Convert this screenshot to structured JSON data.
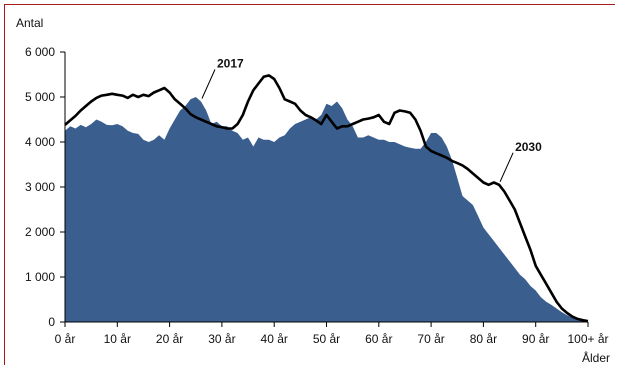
{
  "chart_data": {
    "type": "area",
    "title": "",
    "ylabel": "Antal",
    "xlabel": "Ålder",
    "xlim": [
      0,
      100
    ],
    "ylim": [
      0,
      6000
    ],
    "grid": false,
    "legend": "none",
    "x_ticks": [
      0,
      10,
      20,
      30,
      40,
      50,
      60,
      70,
      80,
      90,
      100
    ],
    "x_tick_labels": [
      "0 år",
      "10 år",
      "20 år",
      "30 år",
      "40 år",
      "50 år",
      "60 år",
      "70 år",
      "80 år",
      "90 år",
      "100+ år"
    ],
    "y_ticks": [
      0,
      1000,
      2000,
      3000,
      4000,
      5000,
      6000
    ],
    "y_tick_labels": [
      "0",
      "1 000",
      "2 000",
      "3 000",
      "4 000",
      "5 000",
      "6 000"
    ],
    "series": [
      {
        "name": "2017",
        "style": "area",
        "color": "#3a5f8f",
        "x": [
          0,
          1,
          2,
          3,
          4,
          5,
          6,
          7,
          8,
          9,
          10,
          11,
          12,
          13,
          14,
          15,
          16,
          17,
          18,
          19,
          20,
          21,
          22,
          23,
          24,
          25,
          26,
          27,
          28,
          29,
          30,
          31,
          32,
          33,
          34,
          35,
          36,
          37,
          38,
          39,
          40,
          41,
          42,
          43,
          44,
          45,
          46,
          47,
          48,
          49,
          50,
          51,
          52,
          53,
          54,
          55,
          56,
          57,
          58,
          59,
          60,
          61,
          62,
          63,
          64,
          65,
          66,
          67,
          68,
          69,
          70,
          71,
          72,
          73,
          74,
          75,
          76,
          77,
          78,
          79,
          80,
          81,
          82,
          83,
          84,
          85,
          86,
          87,
          88,
          89,
          90,
          91,
          92,
          93,
          94,
          95,
          96,
          97,
          98,
          99,
          100
        ],
        "values": [
          4250,
          4350,
          4300,
          4380,
          4330,
          4400,
          4500,
          4450,
          4380,
          4370,
          4400,
          4350,
          4250,
          4200,
          4180,
          4050,
          4000,
          4050,
          4150,
          4050,
          4300,
          4500,
          4700,
          4800,
          4950,
          5000,
          4900,
          4700,
          4400,
          4450,
          4350,
          4350,
          4250,
          4200,
          4050,
          4100,
          3900,
          4100,
          4050,
          4050,
          4000,
          4100,
          4150,
          4300,
          4400,
          4450,
          4500,
          4550,
          4500,
          4600,
          4850,
          4800,
          4900,
          4750,
          4500,
          4350,
          4100,
          4100,
          4150,
          4100,
          4050,
          4050,
          4000,
          4000,
          3950,
          3900,
          3870,
          3850,
          3850,
          4000,
          4200,
          4200,
          4100,
          3900,
          3600,
          3200,
          2800,
          2700,
          2600,
          2350,
          2100,
          1950,
          1800,
          1650,
          1500,
          1350,
          1200,
          1050,
          950,
          800,
          700,
          550,
          450,
          380,
          300,
          220,
          150,
          100,
          70,
          50,
          40
        ]
      },
      {
        "name": "2030",
        "style": "line",
        "color": "#000000",
        "x": [
          0,
          1,
          2,
          3,
          4,
          5,
          6,
          7,
          8,
          9,
          10,
          11,
          12,
          13,
          14,
          15,
          16,
          17,
          18,
          19,
          20,
          21,
          22,
          23,
          24,
          25,
          26,
          27,
          28,
          29,
          30,
          31,
          32,
          33,
          34,
          35,
          36,
          37,
          38,
          39,
          40,
          41,
          42,
          43,
          44,
          45,
          46,
          47,
          48,
          49,
          50,
          51,
          52,
          53,
          54,
          55,
          56,
          57,
          58,
          59,
          60,
          61,
          62,
          63,
          64,
          65,
          66,
          67,
          68,
          69,
          70,
          71,
          72,
          73,
          74,
          75,
          76,
          77,
          78,
          79,
          80,
          81,
          82,
          83,
          84,
          85,
          86,
          87,
          88,
          89,
          90,
          91,
          92,
          93,
          94,
          95,
          96,
          97,
          98,
          99,
          100
        ],
        "values": [
          4380,
          4480,
          4580,
          4700,
          4800,
          4900,
          4980,
          5030,
          5050,
          5070,
          5050,
          5030,
          4980,
          5050,
          5000,
          5050,
          5020,
          5100,
          5150,
          5200,
          5100,
          4950,
          4850,
          4750,
          4620,
          4550,
          4500,
          4450,
          4400,
          4350,
          4330,
          4300,
          4300,
          4400,
          4600,
          4900,
          5150,
          5300,
          5450,
          5480,
          5400,
          5200,
          4950,
          4900,
          4850,
          4700,
          4600,
          4550,
          4480,
          4400,
          4600,
          4450,
          4300,
          4350,
          4350,
          4400,
          4450,
          4500,
          4520,
          4550,
          4600,
          4450,
          4400,
          4650,
          4700,
          4680,
          4650,
          4500,
          4250,
          3900,
          3800,
          3750,
          3700,
          3650,
          3580,
          3530,
          3480,
          3400,
          3300,
          3200,
          3100,
          3050,
          3100,
          3050,
          2900,
          2700,
          2500,
          2200,
          1900,
          1600,
          1250,
          1050,
          850,
          650,
          450,
          300,
          200,
          120,
          70,
          40,
          20
        ]
      }
    ],
    "annotations": [
      {
        "text": "2017",
        "series": "2017",
        "at_x": 26
      },
      {
        "text": "2030",
        "series": "2030",
        "at_x": 83
      }
    ]
  }
}
